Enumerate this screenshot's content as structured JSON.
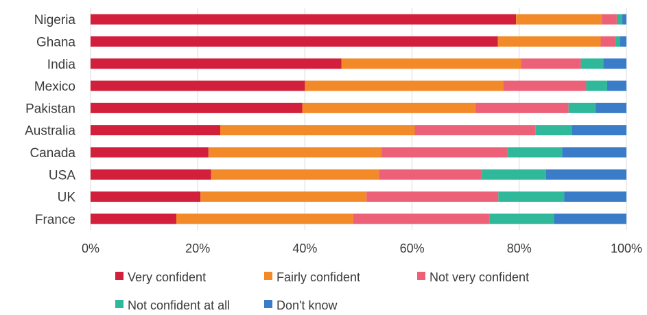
{
  "chart_data": {
    "type": "bar",
    "orientation": "horizontal",
    "stacked": true,
    "categories": [
      "Nigeria",
      "Ghana",
      "India",
      "Mexico",
      "Pakistan",
      "Australia",
      "Canada",
      "USA",
      "UK",
      "France"
    ],
    "series": [
      {
        "name": "Very confident",
        "color": "#d21f3c",
        "values": [
          79.4,
          76.0,
          46.8,
          40.0,
          39.5,
          24.2,
          22.0,
          22.5,
          20.5,
          16.0
        ]
      },
      {
        "name": "Fairly confident",
        "color": "#f28a2a",
        "values": [
          16.0,
          19.2,
          33.5,
          37.0,
          32.3,
          36.3,
          32.3,
          31.3,
          31.0,
          33.0
        ]
      },
      {
        "name": "Not very confident",
        "color": "#ec6178",
        "values": [
          2.8,
          2.8,
          11.2,
          15.5,
          17.4,
          22.5,
          23.5,
          19.2,
          24.6,
          25.5
        ]
      },
      {
        "name": "Not confident at all",
        "color": "#2fb89a",
        "values": [
          1.0,
          0.8,
          4.2,
          3.9,
          5.1,
          6.8,
          10.2,
          12.0,
          12.3,
          12.0
        ]
      },
      {
        "name": "Don't know",
        "color": "#3a7cc7",
        "values": [
          0.8,
          1.2,
          4.3,
          3.6,
          5.7,
          10.2,
          12.0,
          15.0,
          11.6,
          13.5
        ]
      }
    ],
    "xlim": [
      0,
      100
    ],
    "x_ticks": [
      "0%",
      "20%",
      "40%",
      "60%",
      "80%",
      "100%"
    ],
    "grid": "vertical",
    "legend_placement": "bottom"
  }
}
